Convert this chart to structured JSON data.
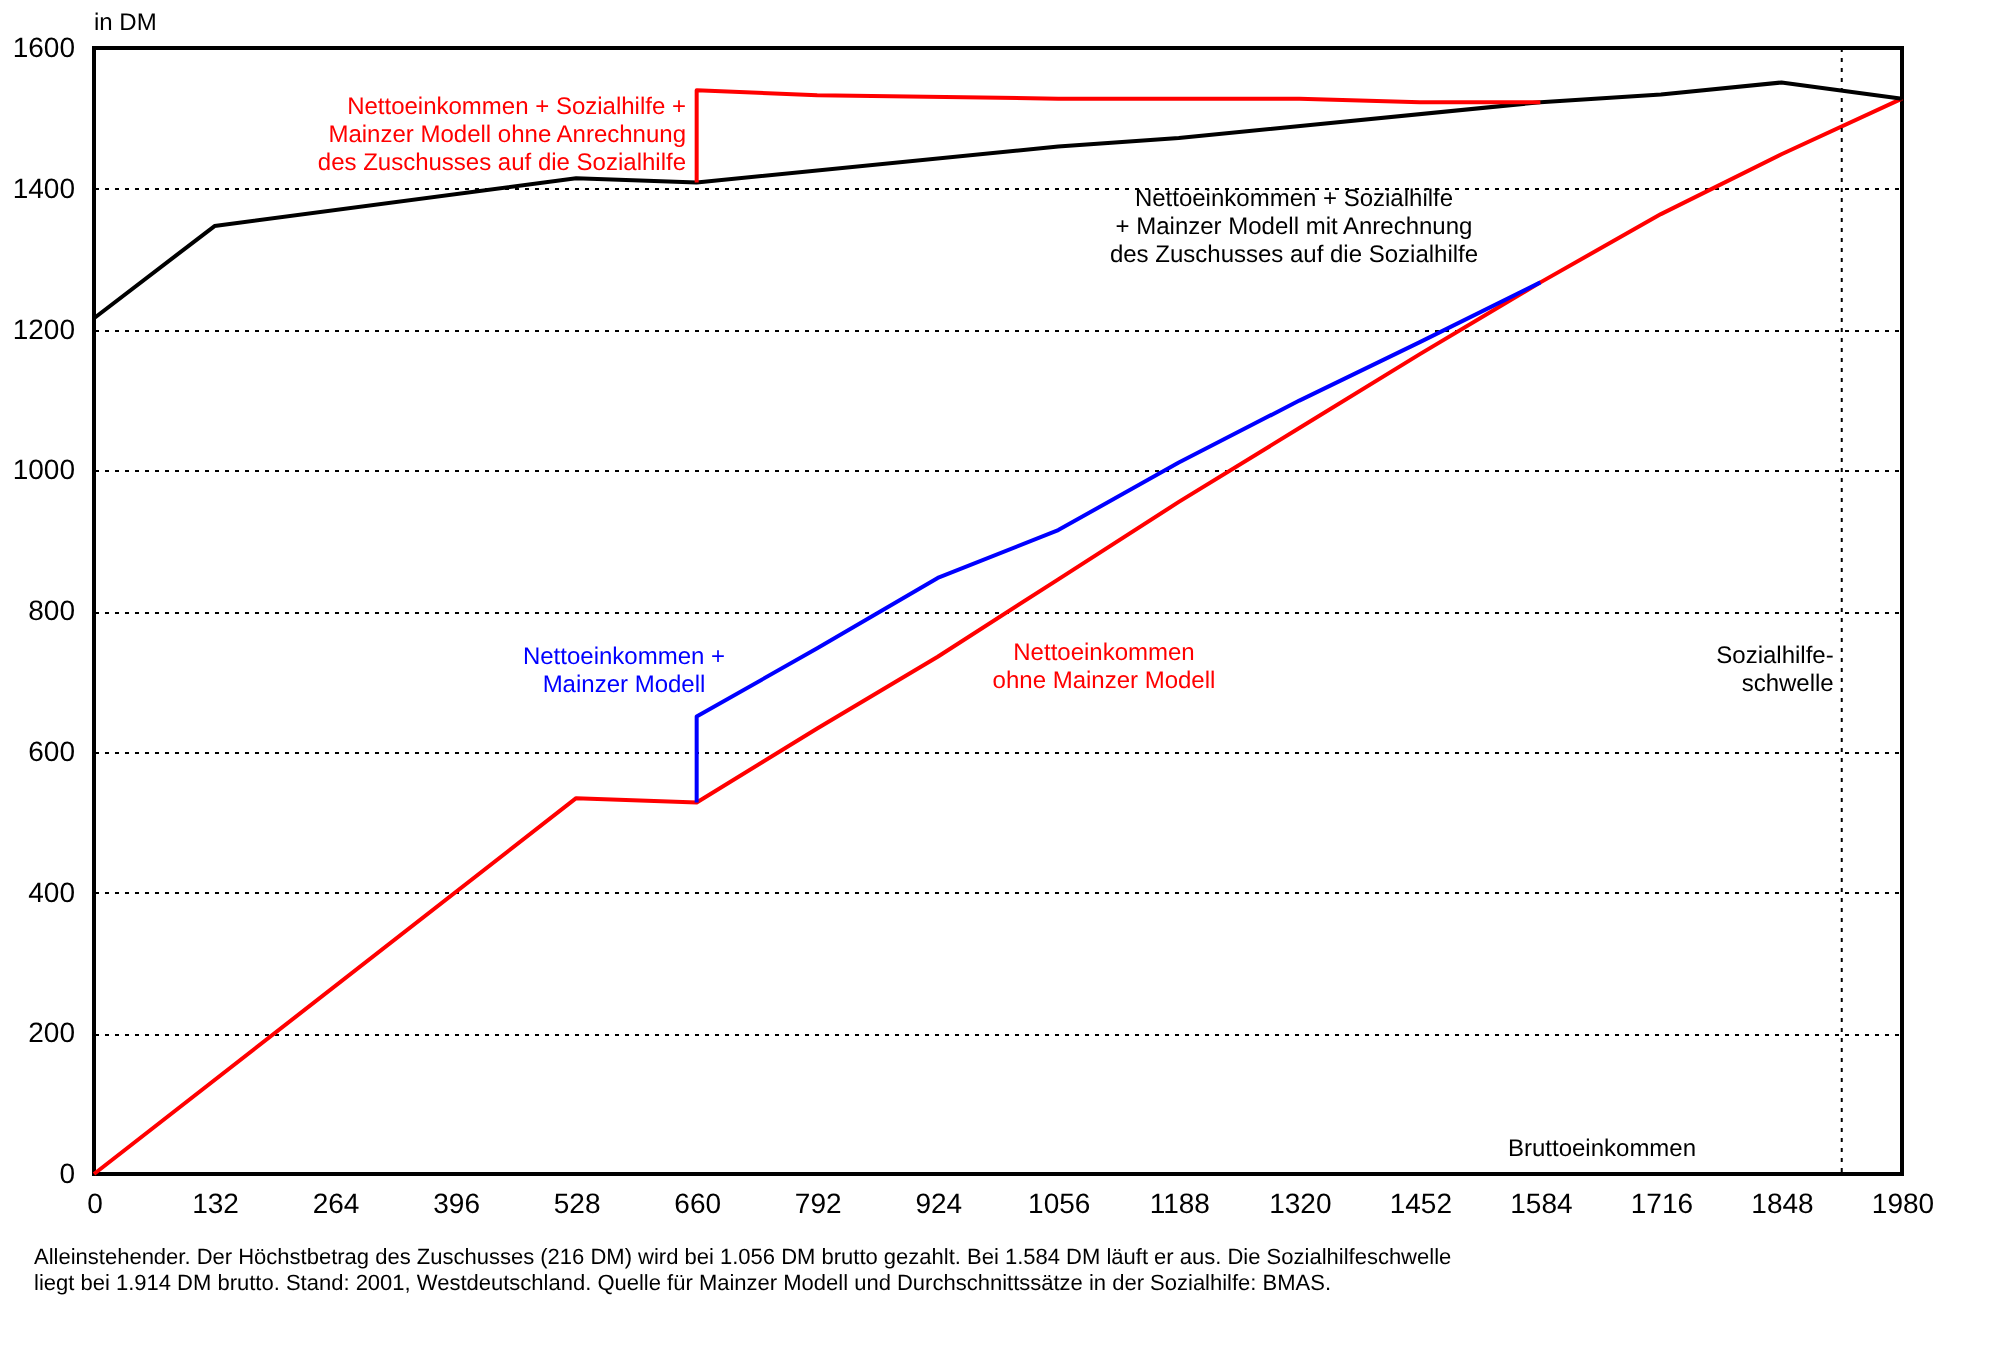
{
  "chart_data": {
    "type": "line",
    "xlabel": "Bruttoeinkommen",
    "ylabel": "in DM",
    "xlim": [
      0,
      1980
    ],
    "xticks": [
      0,
      132,
      264,
      396,
      528,
      660,
      792,
      924,
      1056,
      1188,
      1320,
      1452,
      1584,
      1716,
      1848,
      1980
    ],
    "ylim": [
      0,
      1600
    ],
    "yticks": [
      0,
      200,
      400,
      600,
      800,
      1000,
      1200,
      1400,
      1600
    ],
    "grid": "y",
    "legend": false,
    "marker": "none",
    "line_style": "solid",
    "series": [
      {
        "name": "Nettoeinkommen\nohne Mainzer Modell",
        "color": "#ff0000",
        "x": [
          0,
          528,
          660,
          792,
          924,
          1056,
          1188,
          1320,
          1452,
          1584,
          1716,
          1848,
          1980
        ],
        "values": [
          0,
          534,
          528,
          633,
          735,
          845,
          955,
          1060,
          1165,
          1267,
          1364,
          1449,
          1528
        ]
      },
      {
        "name": "Nettoeinkommen +\nMainzer Modell",
        "color": "#0000ff",
        "x": [
          660,
          660,
          792,
          924,
          1056,
          1188,
          1320,
          1452,
          1584
        ],
        "values": [
          528,
          650,
          747,
          847,
          915,
          1011,
          1099,
          1182,
          1267
        ]
      },
      {
        "name": "Nettoeinkommen + Sozialhilfe\n+ Mainzer Modell mit Anrechnung\ndes Zuschusses auf die Sozialhilfe",
        "color": "#000000",
        "x": [
          0,
          132,
          528,
          660,
          1056,
          1188,
          1584,
          1716,
          1848,
          1980
        ],
        "values": [
          1216,
          1347,
          1415,
          1409,
          1460,
          1472,
          1523,
          1534,
          1551,
          1528
        ]
      },
      {
        "name": "Nettoeinkommen + Sozialhilfe +\nMainzer Modell ohne Anrechnung\ndes Zuschusses auf die Sozialhilfe",
        "color": "#ff0000",
        "x": [
          660,
          660,
          792,
          1056,
          1320,
          1452,
          1584
        ],
        "values": [
          1409,
          1540,
          1533,
          1528,
          1528,
          1523,
          1523
        ]
      }
    ],
    "ref_lines": [
      {
        "axis": "x",
        "value": 1914,
        "label": "Sozialhilfe-\nschwelle",
        "color": "#000000",
        "line_style": "dotted"
      }
    ],
    "annotations": [
      "Alleinstehender. Der Höchstbetrag des Zuschusses (216 DM) wird bei 1.056  DM brutto gezahlt. Bei 1.584 DM läuft er aus. Die Sozialhilfeschwelle\nliegt bei 1.914 DM brutto. Stand: 2001, Westdeutschland. Quelle für Mainzer Modell und Durchschnittssätze in der Sozialhilfe: BMAS."
    ]
  }
}
